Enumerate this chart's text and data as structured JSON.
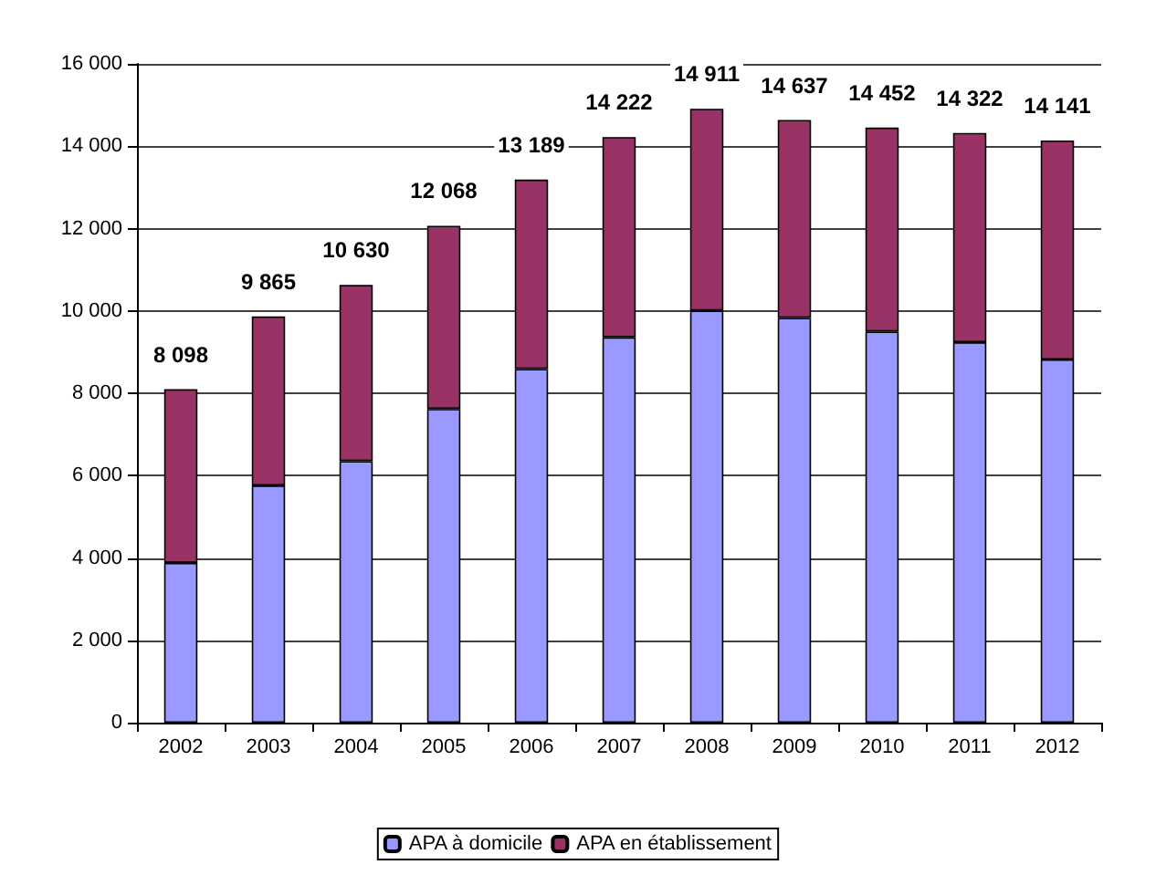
{
  "chart_data": {
    "type": "bar",
    "stacked": true,
    "categories": [
      "2002",
      "2003",
      "2004",
      "2005",
      "2006",
      "2007",
      "2008",
      "2009",
      "2010",
      "2011",
      "2012"
    ],
    "series": [
      {
        "name": "APA à domicile",
        "color": "#9999ff",
        "values": [
          3880,
          5760,
          6350,
          7620,
          8590,
          9360,
          10010,
          9830,
          9500,
          9240,
          8820
        ]
      },
      {
        "name": "APA en établissement",
        "color": "#993366",
        "values": [
          4218,
          4105,
          4280,
          4448,
          4599,
          4862,
          4901,
          4807,
          4952,
          5082,
          5321
        ]
      }
    ],
    "totals": [
      "8 098",
      "9 865",
      "10 630",
      "12 068",
      "13 189",
      "14 222",
      "14 911",
      "14 637",
      "14 452",
      "14 322",
      "14 141"
    ],
    "ylim": [
      0,
      16000
    ],
    "yticks": [
      {
        "value": 0,
        "label": "0"
      },
      {
        "value": 2000,
        "label": "2 000"
      },
      {
        "value": 4000,
        "label": "4 000"
      },
      {
        "value": 6000,
        "label": "6 000"
      },
      {
        "value": 8000,
        "label": "8 000"
      },
      {
        "value": 10000,
        "label": "10 000"
      },
      {
        "value": 12000,
        "label": "12 000"
      },
      {
        "value": 14000,
        "label": "14 000"
      },
      {
        "value": 16000,
        "label": "16 000"
      }
    ],
    "grid": "y",
    "legend": "bottom"
  }
}
